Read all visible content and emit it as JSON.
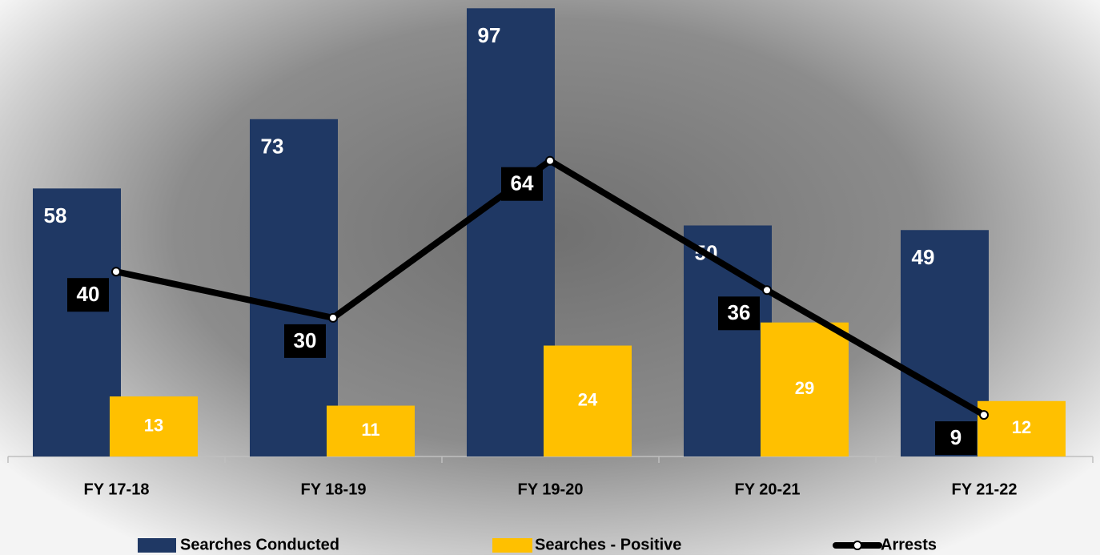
{
  "chart_data": {
    "type": "bar",
    "categories": [
      "FY 17-18",
      "FY 18-19",
      "FY 19-20",
      "FY 20-21",
      "FY 21-22"
    ],
    "ylim": [
      0,
      100
    ],
    "series": [
      {
        "name": "Searches Conducted",
        "type": "bar",
        "color": "#1f3864",
        "values": [
          58,
          73,
          97,
          50,
          49
        ]
      },
      {
        "name": "Searches -  Positive",
        "type": "bar",
        "color": "#ffc000",
        "values": [
          13,
          11,
          24,
          29,
          12
        ]
      },
      {
        "name": "Arrests",
        "type": "line",
        "color": "#000000",
        "values": [
          40,
          30,
          64,
          36,
          9
        ]
      }
    ]
  }
}
